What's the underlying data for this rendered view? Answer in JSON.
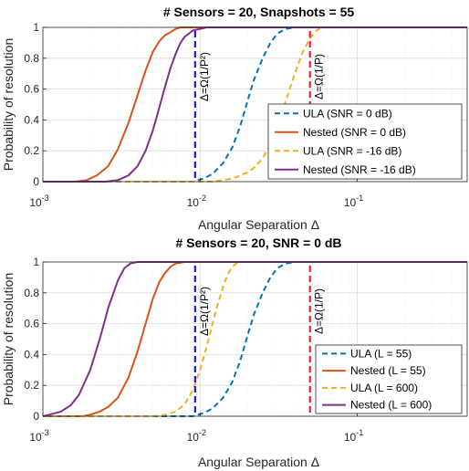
{
  "chart_data": [
    {
      "type": "line",
      "title": "# Sensors = 20, Snapshots = 55",
      "xlabel": "Angular Separation Δ",
      "ylabel": "Probability of resolution",
      "xscale": "log",
      "xlim": [
        0.001,
        0.5
      ],
      "ylim": [
        0,
        1
      ],
      "grid": true,
      "legend_position": "middle-right",
      "yticks": [
        "0",
        "0.2",
        "0.4",
        "0.6",
        "0.8",
        "1"
      ],
      "xticks": [
        {
          "base": "10",
          "exp": "-3",
          "value": 0.001
        },
        {
          "base": "10",
          "exp": "-2",
          "value": 0.01
        },
        {
          "base": "10",
          "exp": "-1",
          "value": 0.1
        }
      ],
      "vlines": [
        {
          "x": 0.0093,
          "label": "Δ=Ω(1/P²)",
          "color": "#1f1fd6"
        },
        {
          "x": 0.05,
          "label": "Δ=Ω(1/P)",
          "color": "#e8232a"
        }
      ],
      "series": [
        {
          "name": "ULA (SNR = 0 dB)",
          "color": "#0072BD",
          "dash": true,
          "x": [
            0.001,
            0.005,
            0.009,
            0.0105,
            0.012,
            0.014,
            0.016,
            0.018,
            0.02,
            0.022,
            0.025,
            0.028,
            0.031,
            0.035,
            0.04,
            0.05,
            0.5
          ],
          "y": [
            0.0,
            0.0,
            0.0,
            0.02,
            0.05,
            0.12,
            0.22,
            0.36,
            0.52,
            0.66,
            0.8,
            0.9,
            0.96,
            0.99,
            1.0,
            1.0,
            1.0
          ]
        },
        {
          "name": "Nested (SNR = 0 dB)",
          "color": "#D95319",
          "dash": false,
          "x": [
            0.001,
            0.0016,
            0.0019,
            0.0022,
            0.0026,
            0.003,
            0.0035,
            0.004,
            0.0045,
            0.005,
            0.0055,
            0.006,
            0.0065,
            0.007,
            0.0075,
            0.008,
            0.009,
            0.5
          ],
          "y": [
            0.0,
            0.0,
            0.01,
            0.04,
            0.1,
            0.21,
            0.38,
            0.56,
            0.72,
            0.84,
            0.91,
            0.95,
            0.97,
            0.99,
            1.0,
            1.0,
            1.0,
            1.0
          ]
        },
        {
          "name": "ULA (SNR = -16 dB)",
          "color": "#EDB120",
          "dash": true,
          "x": [
            0.001,
            0.012,
            0.014,
            0.016,
            0.018,
            0.02,
            0.022,
            0.025,
            0.028,
            0.031,
            0.035,
            0.04,
            0.045,
            0.05,
            0.055,
            0.06,
            0.5
          ],
          "y": [
            0.0,
            0.0,
            0.01,
            0.02,
            0.04,
            0.06,
            0.09,
            0.15,
            0.24,
            0.36,
            0.52,
            0.7,
            0.84,
            0.93,
            0.98,
            1.0,
            1.0
          ]
        },
        {
          "name": "Nested (SNR = -16 dB)",
          "color": "#7E2F8E",
          "dash": false,
          "x": [
            0.001,
            0.0025,
            0.003,
            0.0035,
            0.004,
            0.0045,
            0.005,
            0.0055,
            0.006,
            0.0065,
            0.007,
            0.0075,
            0.008,
            0.009,
            0.01,
            0.011,
            0.5
          ],
          "y": [
            0.0,
            0.0,
            0.01,
            0.04,
            0.1,
            0.2,
            0.33,
            0.48,
            0.62,
            0.74,
            0.83,
            0.9,
            0.94,
            0.98,
            0.99,
            1.0,
            1.0
          ]
        }
      ]
    },
    {
      "type": "line",
      "title": "# Sensors = 20, SNR = 0 dB",
      "xlabel": "Angular Separation Δ",
      "ylabel": "Probability of resolution",
      "xscale": "log",
      "xlim": [
        0.001,
        0.5
      ],
      "ylim": [
        0,
        1
      ],
      "grid": true,
      "legend_position": "bottom-right",
      "yticks": [
        "0",
        "0.2",
        "0.4",
        "0.6",
        "0.8",
        "1"
      ],
      "xticks": [
        {
          "base": "10",
          "exp": "-3",
          "value": 0.001
        },
        {
          "base": "10",
          "exp": "-2",
          "value": 0.01
        },
        {
          "base": "10",
          "exp": "-1",
          "value": 0.1
        }
      ],
      "vlines": [
        {
          "x": 0.0093,
          "label": "Δ=Ω(1/P²)",
          "color": "#1f1fd6"
        },
        {
          "x": 0.05,
          "label": "Δ=Ω(1/P)",
          "color": "#e8232a"
        }
      ],
      "series": [
        {
          "name": "ULA (L = 55)",
          "color": "#0072BD",
          "dash": true,
          "x": [
            0.001,
            0.009,
            0.0105,
            0.012,
            0.014,
            0.016,
            0.018,
            0.02,
            0.022,
            0.025,
            0.028,
            0.031,
            0.035,
            0.04,
            0.05,
            0.5
          ],
          "y": [
            0.0,
            0.0,
            0.02,
            0.05,
            0.12,
            0.22,
            0.36,
            0.52,
            0.66,
            0.8,
            0.9,
            0.96,
            0.99,
            1.0,
            1.0,
            1.0
          ]
        },
        {
          "name": "Nested (L = 55)",
          "color": "#D95319",
          "dash": false,
          "x": [
            0.001,
            0.0018,
            0.002,
            0.0023,
            0.0026,
            0.003,
            0.0035,
            0.004,
            0.0045,
            0.005,
            0.0055,
            0.006,
            0.0065,
            0.007,
            0.008,
            0.5
          ],
          "y": [
            0.0,
            0.0,
            0.01,
            0.03,
            0.06,
            0.12,
            0.25,
            0.42,
            0.6,
            0.76,
            0.87,
            0.93,
            0.97,
            0.99,
            1.0,
            1.0
          ]
        },
        {
          "name": "ULA (L = 600)",
          "color": "#EDB120",
          "dash": true,
          "x": [
            0.001,
            0.005,
            0.006,
            0.007,
            0.008,
            0.009,
            0.01,
            0.011,
            0.012,
            0.013,
            0.014,
            0.015,
            0.016,
            0.017,
            0.018,
            0.5
          ],
          "y": [
            0.0,
            0.0,
            0.01,
            0.03,
            0.08,
            0.17,
            0.3,
            0.45,
            0.6,
            0.73,
            0.84,
            0.92,
            0.97,
            0.99,
            1.0,
            1.0
          ]
        },
        {
          "name": "Nested (L = 600)",
          "color": "#7E2F8E",
          "dash": false,
          "x": [
            0.001,
            0.0011,
            0.0013,
            0.0015,
            0.0017,
            0.002,
            0.0023,
            0.0026,
            0.003,
            0.0033,
            0.0036,
            0.004,
            0.5
          ],
          "y": [
            0.0,
            0.01,
            0.03,
            0.07,
            0.14,
            0.3,
            0.5,
            0.7,
            0.88,
            0.96,
            0.99,
            1.0,
            1.0
          ]
        }
      ]
    }
  ]
}
